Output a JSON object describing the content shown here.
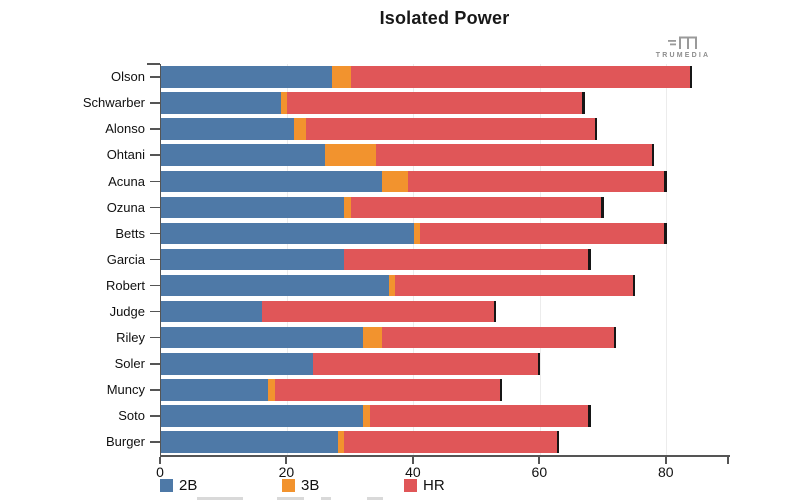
{
  "title": "Isolated Power",
  "brand": {
    "name": "TRUMEDIA",
    "icon": "trumedia-bars-m-logo",
    "color": "#9a9a9a"
  },
  "colors": {
    "doubles": "#4e79a7",
    "triples": "#f2932e",
    "homeruns": "#e05658",
    "bar_endcap": "#161616",
    "axis": "#555555",
    "gridline": "#ececec"
  },
  "legend": [
    {
      "label": "2B",
      "color": "#4e79a7"
    },
    {
      "label": "3B",
      "color": "#f2932e"
    },
    {
      "label": "HR",
      "color": "#e05658"
    }
  ],
  "chart_data": {
    "type": "bar",
    "orientation": "horizontal",
    "stacked": true,
    "title": "Isolated Power",
    "categories": [
      "Olson",
      "Schwarber",
      "Alonso",
      "Ohtani",
      "Acuna",
      "Ozuna",
      "Betts",
      "Garcia",
      "Robert",
      "Judge",
      "Riley",
      "Soler",
      "Muncy",
      "Soto",
      "Burger"
    ],
    "series": [
      {
        "name": "2B",
        "color": "#4e79a7",
        "values": [
          27,
          19,
          21,
          26,
          35,
          29,
          40,
          29,
          36,
          16,
          32,
          24,
          17,
          32,
          28
        ]
      },
      {
        "name": "3B",
        "color": "#f2932e",
        "values": [
          3,
          1,
          2,
          8,
          4,
          1,
          1,
          0,
          1,
          0,
          3,
          0,
          1,
          1,
          1
        ]
      },
      {
        "name": "HR",
        "color": "#e05658",
        "values": [
          54,
          47,
          46,
          44,
          41,
          40,
          39,
          39,
          38,
          37,
          37,
          36,
          36,
          35,
          34
        ]
      }
    ],
    "totals": [
      84,
      67,
      69,
      78,
      80,
      70,
      80,
      68,
      75,
      53,
      72,
      60,
      54,
      68,
      63
    ],
    "xlabel": "",
    "ylabel": "",
    "xlim": [
      0,
      90
    ],
    "xticks": [
      0,
      20,
      40,
      60,
      80
    ],
    "grid": true,
    "legend_position": "bottom"
  }
}
